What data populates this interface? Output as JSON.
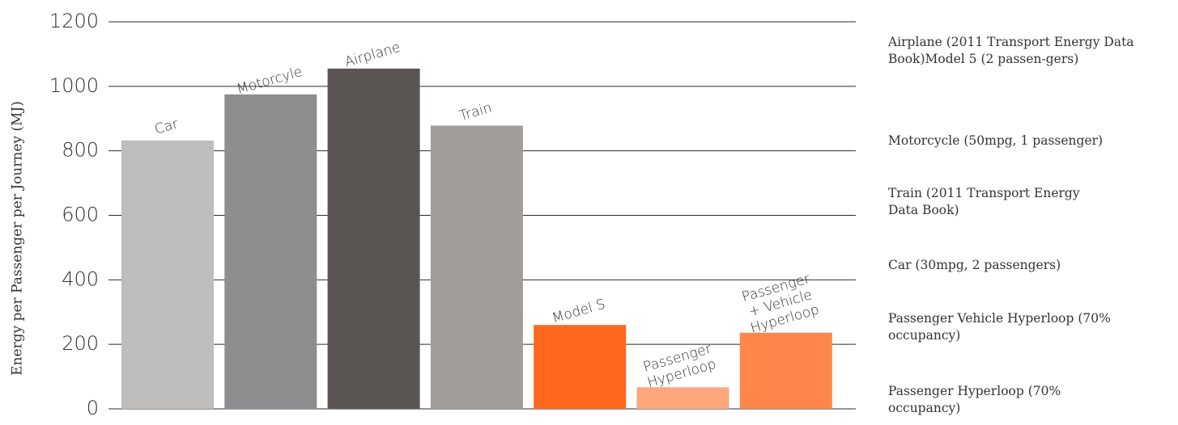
{
  "chart_data": {
    "type": "bar",
    "title": "",
    "xlabel": "",
    "ylabel": "Energy per Passenger per Journey (MJ)",
    "ylim": [
      0,
      1200
    ],
    "yticks": [
      0,
      200,
      400,
      600,
      800,
      1000,
      1200
    ],
    "grid": true,
    "categories": [
      "Car",
      "Motorcyle",
      "Airplane",
      "Train",
      "Model S",
      "Passenger Hyperloop",
      "Passenger + Vehicle Hyperloop"
    ],
    "bar_labels": [
      [
        "Car"
      ],
      [
        "Motorcyle"
      ],
      [
        "Airplane"
      ],
      [
        "Train"
      ],
      [
        "Model S"
      ],
      [
        "Passenger",
        "Hyperloop"
      ],
      [
        "Passenger",
        "+ Vehicle",
        "Hyperloop"
      ]
    ],
    "values": [
      832,
      975,
      1055,
      878,
      260,
      67,
      236
    ],
    "colors": [
      "#bebdbb",
      "#8e8d8f",
      "#5a5552",
      "#a09d9b",
      "#ff671f",
      "#ffa77c",
      "#ff864a"
    ]
  },
  "legend": {
    "items": [
      "Airplane  (2011 Transport Energy Data Book)Model 5 (2 passen-gers)",
      "Motorcycle (50mpg, 1 passenger)",
      "Train (2011 Transport Energy Data Book)",
      "Car (30mpg, 2 passengers)",
      "Passenger Vehicle Hyperloop (70% occupancy)",
      "Passenger  Hyperloop (70% occupancy)"
    ]
  }
}
